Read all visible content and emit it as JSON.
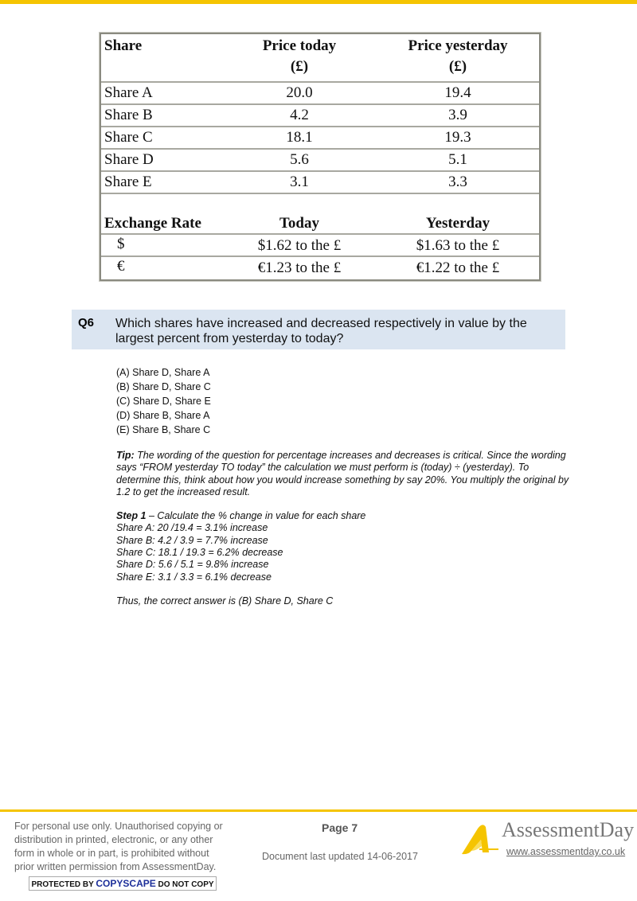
{
  "table": {
    "headers": {
      "share": "Share",
      "today": "Price today",
      "today_unit": "(£)",
      "yesterday": "Price yesterday",
      "yesterday_unit": "(£)"
    },
    "rows": [
      {
        "name": "Share A",
        "today": "20.0",
        "yesterday": "19.4"
      },
      {
        "name": "Share B",
        "today": "4.2",
        "yesterday": "3.9"
      },
      {
        "name": "Share C",
        "today": "18.1",
        "yesterday": "19.3"
      },
      {
        "name": "Share D",
        "today": "5.6",
        "yesterday": "5.1"
      },
      {
        "name": "Share E",
        "today": "3.1",
        "yesterday": "3.3"
      }
    ],
    "exchange": {
      "header": {
        "label": "Exchange Rate",
        "today": "Today",
        "yesterday": "Yesterday"
      },
      "rows": [
        {
          "currency": "$",
          "today": "$1.62 to the £",
          "yesterday": "$1.63 to the £"
        },
        {
          "currency": "€",
          "today": "€1.23 to the £",
          "yesterday": "€1.22 to the £"
        }
      ]
    }
  },
  "question": {
    "number": "Q6",
    "text": "Which shares have increased and decreased respectively in value by the largest percent from yesterday to today?",
    "options": [
      "(A) Share D, Share A",
      "(B) Share D, Share C",
      "(C) Share D, Share E",
      "(D) Share B, Share A",
      "(E) Share B, Share C"
    ]
  },
  "explanation": {
    "tip_label": "Tip:",
    "tip": " The wording of the question for percentage increases and decreases is critical. Since the wording says “FROM yesterday TO today” the calculation we must perform is (today) ÷ (yesterday). To determine this, think about how you would increase something by say 20%. You multiply the original by 1.2 to get the increased result.",
    "step_label": "Step 1",
    "step_text": " – Calculate the % change in value for each share",
    "steps": [
      "Share A: 20 /19.4 = 3.1% increase",
      "Share B: 4.2 / 3.9 = 7.7% increase",
      "Share C: 18.1 / 19.3 = 6.2% decrease",
      "Share D: 5.6 / 5.1 = 9.8% increase",
      "Share E: 3.1 / 3.3 = 6.1% decrease"
    ],
    "conclusion": "Thus, the correct answer is (B) Share D, Share C"
  },
  "footer": {
    "legal": [
      "For personal use only. Unauthorised copying or",
      "distribution in printed, electronic, or any other",
      "form in whole or in part, is prohibited without",
      "prior written permission from AssessmentDay."
    ],
    "copyscape_pre": "PROTECTED BY ",
    "copyscape_brand": "COPYSCAPE",
    "copyscape_post": " DO NOT COPY",
    "page": "Page 7",
    "updated": "Document last updated 14-06-2017",
    "brand": "AssessmentDay",
    "url": "www.assessmentday.co.uk"
  },
  "colors": {
    "accent": "#f5c400",
    "question_bg": "#dbe5f1"
  }
}
